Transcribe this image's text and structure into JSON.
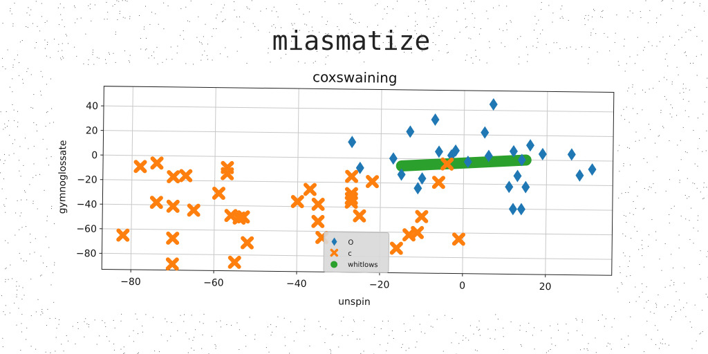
{
  "figure": {
    "suptitle": "miasmatize"
  },
  "chart_data": {
    "type": "scatter",
    "title": "coxswaining",
    "xlabel": "unspin",
    "ylabel": "gymnoglossate",
    "xlim": [
      -87,
      36
    ],
    "ylim": [
      -93,
      56
    ],
    "xticks": [
      -80,
      -60,
      -40,
      -20,
      0,
      20
    ],
    "yticks": [
      -80,
      -60,
      -40,
      -20,
      0,
      20,
      40
    ],
    "grid": true,
    "legend_position": "lower center",
    "colors": {
      "diamond": "#1f77b4",
      "x": "#ff7f0e",
      "line": "#2ca02c",
      "legend_bg": "#d8d8d8"
    },
    "series": [
      {
        "name": "O",
        "marker": "diamond",
        "color": "#1f77b4",
        "points": [
          [
            -27,
            13
          ],
          [
            -25,
            -8
          ],
          [
            -17,
            0
          ],
          [
            -15,
            -13
          ],
          [
            -13,
            22
          ],
          [
            -11,
            -24
          ],
          [
            -10,
            -16
          ],
          [
            -7,
            32
          ],
          [
            -6,
            6
          ],
          [
            -3,
            3
          ],
          [
            -2,
            7
          ],
          [
            1,
            -2
          ],
          [
            5,
            22
          ],
          [
            6,
            3
          ],
          [
            7,
            45
          ],
          [
            11,
            -22
          ],
          [
            12,
            -40
          ],
          [
            12,
            7
          ],
          [
            13,
            -13
          ],
          [
            14,
            -40
          ],
          [
            14,
            0
          ],
          [
            15,
            -22
          ],
          [
            16,
            12
          ],
          [
            19,
            5
          ],
          [
            26,
            5
          ],
          [
            28,
            -12
          ],
          [
            31,
            -7
          ]
        ]
      },
      {
        "name": "c",
        "marker": "x",
        "color": "#ff7f0e",
        "points": [
          [
            -82,
            -65
          ],
          [
            -78,
            -9
          ],
          [
            -74,
            -6
          ],
          [
            -74,
            -38
          ],
          [
            -70,
            -17
          ],
          [
            -70,
            -41
          ],
          [
            -70,
            -67
          ],
          [
            -70,
            -88
          ],
          [
            -67,
            -16
          ],
          [
            -65,
            -44
          ],
          [
            -59,
            -30
          ],
          [
            -57,
            -9
          ],
          [
            -57,
            -14
          ],
          [
            -56,
            -48
          ],
          [
            -55,
            -86
          ],
          [
            -54,
            -50
          ],
          [
            -53,
            -49
          ],
          [
            -52,
            -70
          ],
          [
            -40,
            -36
          ],
          [
            -37,
            -26
          ],
          [
            -35,
            -38
          ],
          [
            -35,
            -52
          ],
          [
            -34,
            -65
          ],
          [
            -27,
            -15
          ],
          [
            -27,
            -29
          ],
          [
            -27,
            -33
          ],
          [
            -27,
            -36
          ],
          [
            -25,
            -47
          ],
          [
            -22,
            -19
          ],
          [
            -16,
            -73
          ],
          [
            -13,
            -62
          ],
          [
            -11,
            -60
          ],
          [
            -10,
            -47
          ],
          [
            -6,
            -19
          ],
          [
            -4,
            -4
          ],
          [
            -1,
            -65
          ]
        ]
      },
      {
        "name": "whitlows",
        "marker": "line",
        "color": "#2ca02c",
        "points": [
          [
            -15,
            -6
          ],
          [
            15,
            0
          ]
        ]
      }
    ]
  }
}
